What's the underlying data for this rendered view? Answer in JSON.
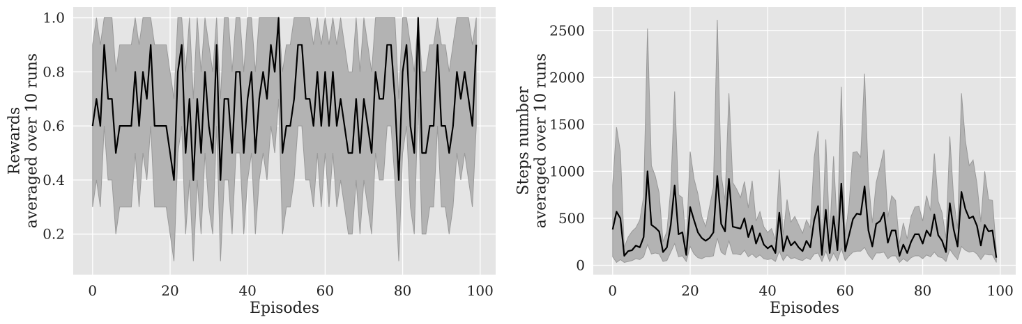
{
  "chart_data": [
    {
      "type": "line",
      "xlabel": "Episodes",
      "ylabel_lines": [
        "Rewards",
        "averaged over 10 runs"
      ],
      "xlim": [
        -5,
        104
      ],
      "ylim": [
        0.05,
        1.04
      ],
      "xticks": [
        0,
        20,
        40,
        60,
        80,
        100
      ],
      "yticks": [
        0.2,
        0.4,
        0.6,
        0.8,
        1.0
      ],
      "ytick_labels": [
        "0.2",
        "0.4",
        "0.6",
        "0.8",
        "1.0"
      ],
      "grid": true,
      "legend": "none",
      "mean": [
        0.6,
        0.7,
        0.6,
        0.9,
        0.7,
        0.7,
        0.5,
        0.6,
        0.6,
        0.6,
        0.6,
        0.8,
        0.6,
        0.8,
        0.7,
        0.9,
        0.6,
        0.6,
        0.6,
        0.6,
        0.5,
        0.4,
        0.8,
        0.9,
        0.5,
        0.7,
        0.4,
        0.7,
        0.5,
        0.8,
        0.6,
        0.5,
        0.9,
        0.4,
        0.7,
        0.7,
        0.5,
        0.8,
        0.8,
        0.5,
        0.7,
        0.8,
        0.5,
        0.7,
        0.8,
        0.7,
        0.9,
        0.8,
        1.0,
        0.5,
        0.6,
        0.6,
        0.7,
        0.9,
        0.9,
        0.7,
        0.7,
        0.6,
        0.8,
        0.6,
        0.8,
        0.6,
        0.8,
        0.6,
        0.7,
        0.6,
        0.5,
        0.5,
        0.7,
        0.5,
        0.7,
        0.6,
        0.5,
        0.8,
        0.7,
        0.7,
        0.9,
        0.9,
        0.7,
        0.4,
        0.8,
        0.9,
        0.6,
        0.5,
        1.0,
        0.5,
        0.5,
        0.6,
        0.6,
        0.9,
        0.6,
        0.6,
        0.5,
        0.6,
        0.8,
        0.7,
        0.8,
        0.7,
        0.6,
        0.9
      ],
      "upper": [
        0.9,
        1.0,
        0.9,
        1.0,
        1.0,
        1.0,
        0.8,
        0.9,
        0.9,
        0.9,
        0.9,
        1.0,
        0.9,
        1.0,
        1.0,
        1.0,
        0.9,
        0.9,
        0.9,
        0.9,
        0.8,
        0.7,
        1.0,
        1.0,
        0.8,
        1.0,
        0.7,
        1.0,
        0.8,
        1.0,
        0.9,
        0.8,
        1.0,
        0.7,
        1.0,
        1.0,
        0.8,
        1.0,
        1.0,
        0.8,
        1.0,
        1.0,
        0.8,
        1.0,
        1.0,
        1.0,
        1.0,
        1.0,
        1.0,
        0.8,
        0.9,
        0.9,
        1.0,
        1.0,
        1.0,
        1.0,
        1.0,
        0.9,
        1.0,
        0.9,
        1.0,
        0.9,
        1.0,
        0.9,
        1.0,
        0.9,
        0.8,
        0.8,
        1.0,
        0.8,
        1.0,
        0.9,
        0.8,
        1.0,
        1.0,
        1.0,
        1.0,
        1.0,
        1.0,
        0.7,
        1.0,
        1.0,
        0.9,
        0.8,
        1.0,
        0.8,
        0.8,
        0.9,
        0.9,
        1.0,
        0.9,
        0.9,
        0.8,
        0.9,
        1.0,
        1.0,
        1.0,
        1.0,
        0.9,
        1.0
      ],
      "lower": [
        0.3,
        0.4,
        0.3,
        0.6,
        0.4,
        0.4,
        0.2,
        0.3,
        0.3,
        0.3,
        0.3,
        0.5,
        0.3,
        0.5,
        0.4,
        0.6,
        0.3,
        0.3,
        0.3,
        0.3,
        0.2,
        0.1,
        0.5,
        0.6,
        0.2,
        0.4,
        0.1,
        0.4,
        0.2,
        0.5,
        0.3,
        0.2,
        0.6,
        0.1,
        0.4,
        0.4,
        0.2,
        0.5,
        0.5,
        0.2,
        0.4,
        0.5,
        0.2,
        0.4,
        0.5,
        0.4,
        0.6,
        0.5,
        0.7,
        0.2,
        0.3,
        0.3,
        0.4,
        0.6,
        0.6,
        0.4,
        0.4,
        0.3,
        0.5,
        0.3,
        0.5,
        0.3,
        0.5,
        0.3,
        0.4,
        0.3,
        0.2,
        0.2,
        0.4,
        0.2,
        0.4,
        0.3,
        0.2,
        0.5,
        0.4,
        0.4,
        0.6,
        0.6,
        0.4,
        0.1,
        0.5,
        0.6,
        0.3,
        0.2,
        0.7,
        0.2,
        0.2,
        0.3,
        0.3,
        0.6,
        0.3,
        0.3,
        0.2,
        0.3,
        0.5,
        0.4,
        0.5,
        0.4,
        0.3,
        0.6
      ],
      "colors": {
        "background": "#e5e5e5",
        "grid": "#ffffff",
        "line": "#000000",
        "band": "#b3b3b3",
        "band_edge": "#999999"
      }
    },
    {
      "type": "line",
      "xlabel": "Episodes",
      "ylabel_lines": [
        "Steps number",
        "averaged over 10 runs"
      ],
      "xlim": [
        -5,
        104
      ],
      "ylim": [
        -100,
        2750
      ],
      "xticks": [
        0,
        20,
        40,
        60,
        80,
        100
      ],
      "yticks": [
        0,
        500,
        1000,
        1500,
        2000,
        2500
      ],
      "ytick_labels": [
        "0",
        "500",
        "1000",
        "1500",
        "2000",
        "2500"
      ],
      "grid": true,
      "legend": "none",
      "mean": [
        380,
        570,
        500,
        100,
        150,
        160,
        210,
        190,
        300,
        1000,
        430,
        400,
        360,
        140,
        190,
        430,
        850,
        330,
        350,
        110,
        620,
        480,
        350,
        290,
        260,
        290,
        350,
        950,
        440,
        360,
        920,
        410,
        400,
        390,
        500,
        300,
        420,
        230,
        340,
        220,
        180,
        210,
        130,
        560,
        150,
        310,
        210,
        250,
        190,
        150,
        260,
        190,
        480,
        630,
        110,
        590,
        130,
        520,
        160,
        870,
        150,
        320,
        490,
        550,
        540,
        840,
        370,
        200,
        440,
        470,
        560,
        240,
        370,
        370,
        100,
        220,
        130,
        250,
        330,
        330,
        230,
        370,
        310,
        540,
        320,
        260,
        140,
        660,
        380,
        200,
        780,
        600,
        500,
        520,
        420,
        210,
        430,
        360,
        370,
        80
      ],
      "upper": [
        850,
        1470,
        1210,
        190,
        300,
        360,
        400,
        480,
        730,
        2520,
        1060,
        950,
        770,
        250,
        360,
        820,
        1850,
        750,
        720,
        200,
        1210,
        920,
        760,
        520,
        410,
        620,
        830,
        2610,
        960,
        690,
        1830,
        880,
        810,
        720,
        890,
        610,
        900,
        470,
        570,
        410,
        350,
        390,
        270,
        1020,
        320,
        700,
        460,
        520,
        430,
        340,
        480,
        400,
        1150,
        1430,
        200,
        1340,
        310,
        1160,
        340,
        1900,
        320,
        650,
        1200,
        1210,
        1150,
        2040,
        900,
        450,
        880,
        1050,
        1230,
        510,
        740,
        690,
        230,
        450,
        280,
        520,
        620,
        630,
        470,
        740,
        580,
        1190,
        680,
        560,
        290,
        1370,
        700,
        390,
        1830,
        1330,
        1060,
        1120,
        870,
        460,
        1000,
        700,
        690,
        160
      ],
      "lower": [
        90,
        30,
        60,
        30,
        40,
        50,
        70,
        60,
        90,
        220,
        120,
        130,
        120,
        40,
        50,
        140,
        230,
        90,
        100,
        40,
        200,
        120,
        80,
        70,
        90,
        90,
        100,
        290,
        140,
        110,
        260,
        120,
        120,
        110,
        160,
        90,
        120,
        80,
        110,
        70,
        60,
        70,
        40,
        150,
        50,
        110,
        70,
        80,
        60,
        50,
        80,
        60,
        120,
        130,
        40,
        150,
        40,
        130,
        50,
        180,
        50,
        100,
        140,
        150,
        150,
        190,
        110,
        60,
        130,
        130,
        140,
        70,
        100,
        100,
        30,
        70,
        40,
        80,
        100,
        100,
        70,
        110,
        90,
        140,
        90,
        80,
        40,
        170,
        110,
        60,
        200,
        160,
        140,
        150,
        120,
        60,
        120,
        110,
        110,
        30
      ],
      "colors": {
        "background": "#e5e5e5",
        "grid": "#ffffff",
        "line": "#000000",
        "band": "#b3b3b3",
        "band_edge": "#999999"
      }
    }
  ]
}
